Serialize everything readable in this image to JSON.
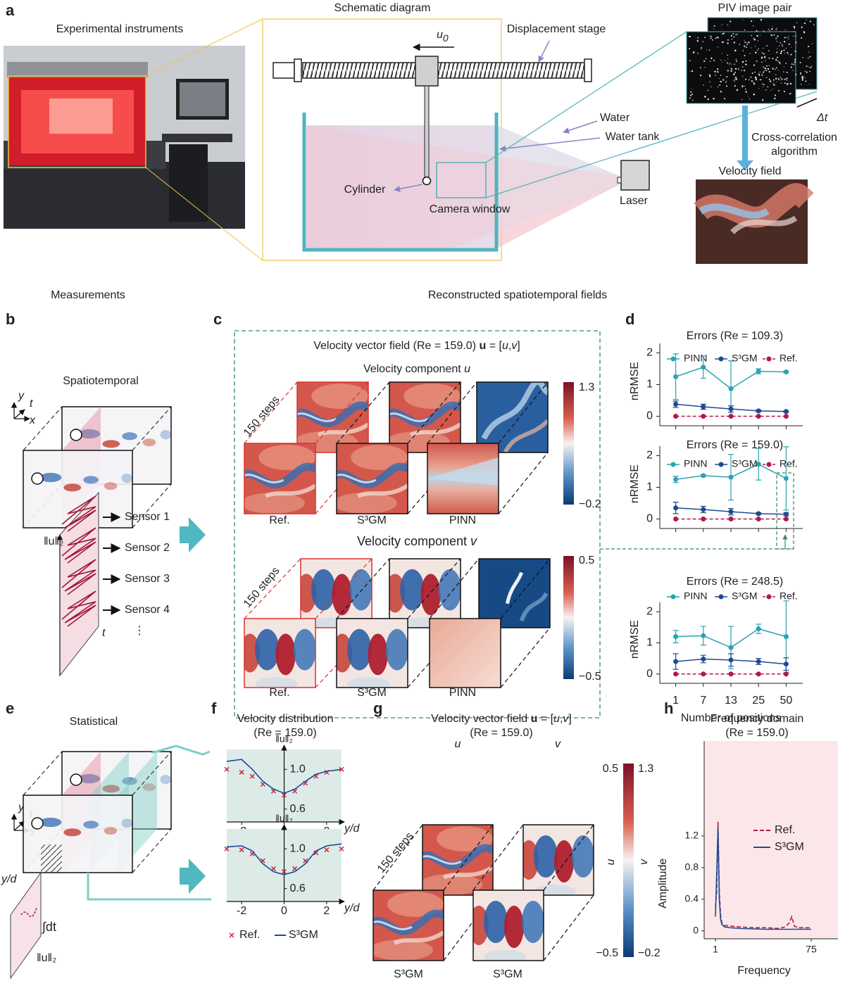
{
  "sections": [
    "Measurements",
    "Reconstructed spatiotemporal fields"
  ],
  "panel_a": {
    "letter": "a",
    "titles": [
      "Experimental instruments",
      "Schematic diagram",
      "PIV image pair"
    ],
    "u0": [
      "u",
      "0"
    ],
    "labels": [
      "Displacement stage",
      "Water",
      "Water tank",
      "Cylinder",
      "Camera window",
      "Laser"
    ],
    "dt": "Δt",
    "xcorr": [
      "Cross-correlation",
      "algorithm"
    ],
    "velocity": "Velocity field"
  },
  "panel_b": {
    "letter": "b",
    "title": "Spatiotemporal",
    "axes": [
      "y",
      "t",
      "x"
    ],
    "norm": "‖u‖₂",
    "sensors": [
      "Sensor 1",
      "Sensor 2",
      "Sensor 3",
      "Sensor 4"
    ],
    "more": "⋮",
    "t": "t"
  },
  "panel_c": {
    "letter": "c",
    "title": [
      "Velocity vector field (Re = 159.0) ",
      "u",
      " = [",
      "u",
      ",",
      "v",
      "]"
    ],
    "comp_u": [
      "Velocity component ",
      "u"
    ],
    "comp_v": [
      "Velocity component ",
      "v"
    ],
    "steps": "150 steps",
    "methods": [
      "Ref.",
      "S³GM",
      "PINN"
    ],
    "cbar_u": [
      "1.3",
      "−0.2"
    ],
    "cbar_v": [
      "0.5",
      "−0.5"
    ]
  },
  "panel_d": {
    "letter": "d"
  },
  "panel_e": {
    "letter": "e",
    "title": "Statistical",
    "axes": [
      "y",
      "t",
      "x"
    ],
    "ylabel": "y/d",
    "integral": "∫dt",
    "norm": "‖u‖₂"
  },
  "panel_f": {
    "letter": "f",
    "title": [
      "Velocity distribution",
      "(Re = 159.0)"
    ]
  },
  "panel_g": {
    "letter": "g",
    "title": [
      "Velocity vector field  ",
      "u",
      " = [",
      "u",
      ",",
      "v",
      "]"
    ],
    "re": "(Re = 159.0)",
    "cols": [
      "u",
      "v"
    ],
    "steps": "150 steps",
    "methods": [
      "S³GM",
      "S³GM"
    ],
    "cbar_v": [
      "0.5",
      "−0.5"
    ],
    "cbar_u": [
      "1.3",
      "−0.2"
    ],
    "cbar_labels": [
      "u",
      "v"
    ]
  },
  "panel_h": {
    "letter": "h",
    "title": [
      "Frequency domain",
      "(Re = 159.0)"
    ]
  },
  "chart_data": [
    {
      "type": "line",
      "title": "Errors (Re = 109.3)",
      "ylabel": "nRMSE",
      "categories": [
        "1",
        "7",
        "13",
        "25",
        "50"
      ],
      "series": [
        {
          "name": "PINN",
          "color": "#2aa3b3",
          "values": [
            1.25,
            1.55,
            0.87,
            1.42,
            1.4
          ],
          "errors": [
            0.72,
            0.35,
            0.88,
            0.08,
            0.03
          ]
        },
        {
          "name": "S³GM",
          "color": "#1f4a91",
          "values": [
            0.38,
            0.3,
            0.23,
            0.17,
            0.15
          ],
          "errors": [
            0.1,
            0.08,
            0.1,
            0.03,
            0.02
          ]
        },
        {
          "name": "Ref.",
          "color": "#b3184a",
          "dashed": true,
          "values": [
            0,
            0,
            0,
            0,
            0
          ]
        }
      ],
      "ylim": [
        -0.3,
        2.3
      ],
      "yticks": [
        0,
        1,
        2
      ]
    },
    {
      "type": "line",
      "title": "Errors (Re = 159.0)",
      "ylabel": "nRMSE",
      "categories": [
        "1",
        "7",
        "13",
        "25",
        "50"
      ],
      "series": [
        {
          "name": "PINN",
          "color": "#2aa3b3",
          "values": [
            1.25,
            1.37,
            1.32,
            1.73,
            1.28
          ],
          "errors": [
            0.1,
            0.03,
            0.72,
            0.5,
            1.0
          ]
        },
        {
          "name": "S³GM",
          "color": "#1f4a91",
          "values": [
            0.35,
            0.3,
            0.23,
            0.17,
            0.15
          ],
          "errors": [
            0.18,
            0.1,
            0.1,
            0.03,
            0.05
          ]
        },
        {
          "name": "Ref.",
          "color": "#b3184a",
          "dashed": true,
          "values": [
            0,
            0,
            0,
            0,
            0
          ]
        }
      ],
      "ylim": [
        -0.3,
        2.3
      ],
      "yticks": [
        0,
        1,
        2
      ]
    },
    {
      "type": "line",
      "title": "Errors (Re = 248.5)",
      "ylabel": "nRMSE",
      "xlabel": "Number of positions",
      "categories": [
        "1",
        "7",
        "13",
        "25",
        "50"
      ],
      "series": [
        {
          "name": "PINN",
          "color": "#2aa3b3",
          "values": [
            1.2,
            1.23,
            0.85,
            1.45,
            1.2
          ],
          "errors": [
            0.2,
            0.3,
            0.68,
            0.15,
            1.15
          ]
        },
        {
          "name": "S³GM",
          "color": "#1f4a91",
          "values": [
            0.4,
            0.48,
            0.45,
            0.4,
            0.32
          ],
          "errors": [
            0.25,
            0.12,
            0.2,
            0.1,
            0.2
          ]
        },
        {
          "name": "Ref.",
          "color": "#b3184a",
          "dashed": true,
          "values": [
            0,
            0,
            0,
            0,
            0
          ]
        }
      ],
      "ylim": [
        -0.3,
        2.3
      ],
      "yticks": [
        0,
        1,
        2
      ]
    },
    {
      "type": "profile",
      "ylabel": "‖u‖₂",
      "xlabel": "y/d",
      "x": [
        -2.7,
        -2,
        -1.5,
        -1,
        -0.5,
        0,
        0.5,
        1,
        1.5,
        2,
        2.7
      ],
      "series": [
        {
          "name": "Ref.",
          "color": "#c8283c",
          "marker": "x",
          "values": [
            1.0,
            0.97,
            0.93,
            0.85,
            0.78,
            0.74,
            0.78,
            0.86,
            0.93,
            0.97,
            1.0
          ]
        },
        {
          "name": "S³GM",
          "color": "#1f4a91",
          "values": [
            1.08,
            1.1,
            1.0,
            0.88,
            0.8,
            0.76,
            0.8,
            0.88,
            0.95,
            0.98,
            1.0
          ]
        }
      ],
      "xlim": [
        -2.7,
        2.7
      ],
      "ylim": [
        0.47,
        1.2
      ],
      "xticks": [
        -2,
        0,
        2
      ],
      "yticks": [
        {
          "value": 1,
          "label": "1.0"
        },
        0.6
      ]
    },
    {
      "type": "profile",
      "ylabel": "‖u‖₂",
      "xlabel": "y/d",
      "x": [
        -2.7,
        -2,
        -1.5,
        -1,
        -0.5,
        0,
        0.5,
        1,
        1.5,
        2,
        2.7
      ],
      "series": [
        {
          "name": "Ref.",
          "color": "#c8283c",
          "marker": "x",
          "values": [
            1.0,
            0.99,
            0.95,
            0.88,
            0.8,
            0.77,
            0.8,
            0.88,
            0.96,
            0.99,
            1.0
          ]
        },
        {
          "name": "S³GM",
          "color": "#1f4a91",
          "values": [
            1.02,
            1.03,
            0.98,
            0.85,
            0.77,
            0.74,
            0.77,
            0.85,
            0.98,
            1.03,
            1.05
          ]
        }
      ],
      "xlim": [
        -2.7,
        2.7
      ],
      "ylim": [
        0.47,
        1.2
      ],
      "xticks": [
        -2,
        0,
        2
      ],
      "yticks": [
        {
          "value": 1,
          "label": "1.0"
        },
        0.6
      ],
      "legend": "bottom"
    },
    {
      "type": "spectrum",
      "ylabel": "Amplitude",
      "xlabel": "Frequency",
      "series": [
        {
          "name": "Ref.",
          "color": "#b3184a",
          "dashed": true,
          "x": [
            1,
            2,
            3,
            4,
            5,
            6,
            8,
            12,
            20,
            30,
            40,
            50,
            55,
            58,
            60,
            62,
            65,
            75
          ],
          "values": [
            0.3,
            0.5,
            1.38,
            0.5,
            0.2,
            0.1,
            0.07,
            0.06,
            0.05,
            0.04,
            0.04,
            0.03,
            0.05,
            0.1,
            0.18,
            0.06,
            0.04,
            0.04
          ]
        },
        {
          "name": "S³GM",
          "color": "#1f4a91",
          "x": [
            1,
            3,
            4,
            5,
            6,
            8,
            12,
            20,
            40,
            60,
            75
          ],
          "values": [
            0.18,
            1.3,
            0.4,
            0.15,
            0.08,
            0.05,
            0.04,
            0.03,
            0.02,
            0.02,
            0.02
          ]
        }
      ],
      "xlim": [
        -7.7,
        95.7
      ],
      "ylim": [
        -0.1,
        2.4
      ],
      "xticks": [
        1,
        75
      ],
      "yticks": [
        0,
        0.4,
        0.8,
        1.2
      ],
      "legend": "upper right"
    }
  ]
}
